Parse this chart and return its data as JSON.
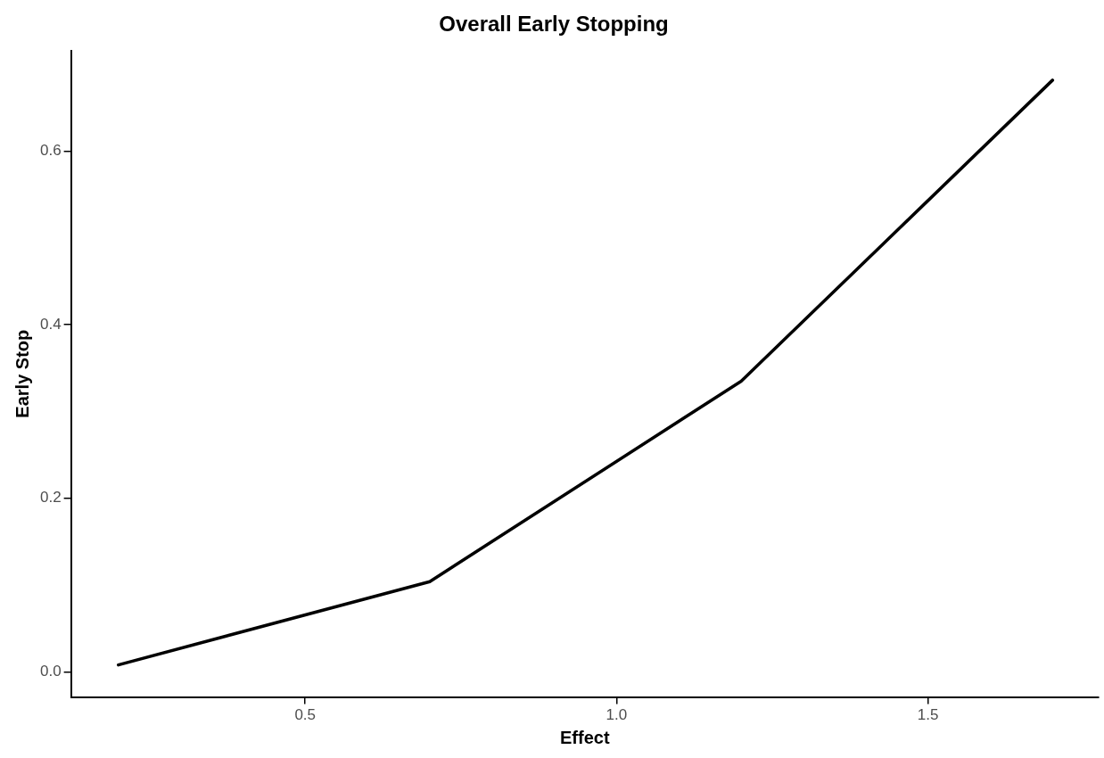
{
  "chart_data": {
    "type": "line",
    "title": "Overall Early Stopping",
    "xlabel": "Effect",
    "ylabel": "Early Stop",
    "x": [
      0.2,
      0.7,
      1.2,
      1.7
    ],
    "series": [
      {
        "color": "#000000",
        "values": [
          0.008,
          0.104,
          0.335,
          0.682
        ]
      }
    ],
    "xlim": [
      0.124,
      1.774
    ],
    "xticks": [
      {
        "value": 0.5,
        "label": "0.5"
      },
      {
        "value": 1.0,
        "label": "1.0"
      },
      {
        "value": 1.5,
        "label": "1.5"
      }
    ],
    "ylim": [
      -0.029,
      0.716
    ],
    "yticks": [
      {
        "value": 0,
        "label": "0.0"
      },
      {
        "value": 0.2,
        "label": "0.2"
      },
      {
        "value": 0.4,
        "label": "0.4"
      },
      {
        "value": 0.6,
        "label": "0.6"
      }
    ],
    "grid": false,
    "legend": false,
    "marker": "none",
    "line_style": "solid"
  }
}
